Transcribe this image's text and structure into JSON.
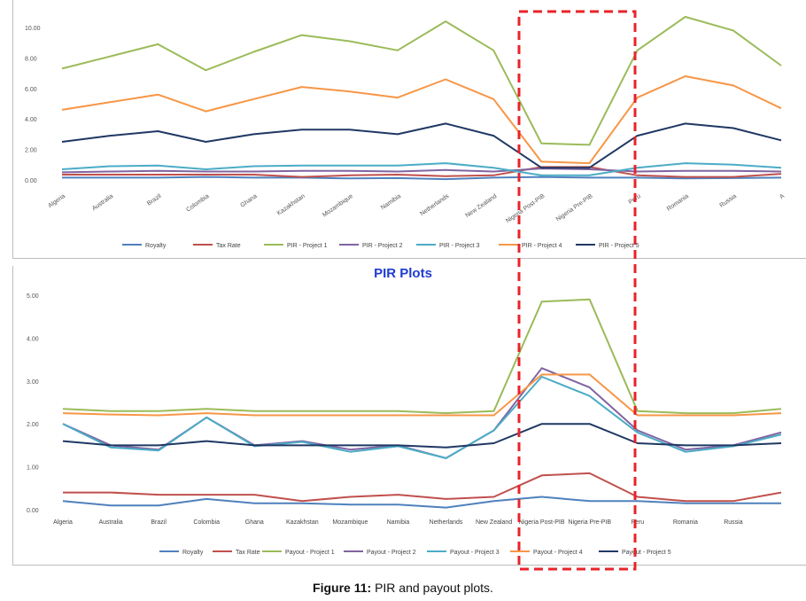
{
  "figure": {
    "caption_prefix": "Figure 11:",
    "caption_text": " PIR and payout plots.",
    "highlight_color": "#e8232a"
  },
  "chart_data": [
    {
      "type": "line",
      "title": "",
      "xlabel": "",
      "ylabel": "",
      "ylim": [
        0,
        10
      ],
      "yticks": [
        "0.00",
        "2.00",
        "4.00",
        "6.00",
        "8.00",
        "10.00"
      ],
      "grid": false,
      "legend": "bottom",
      "categories": [
        "Algeria",
        "Australia",
        "Brazil",
        "Colombia",
        "Ghana",
        "Kazakhstan",
        "Mozambique",
        "Namibia",
        "Netherlands",
        "New Zealand",
        "Nigeria Post-PIB",
        "Nigeria Pre-PIB",
        "Peru",
        "Romania",
        "Russia",
        "A"
      ],
      "series": [
        {
          "name": "Royalty",
          "color": "#4f81bd",
          "values": [
            0.15,
            0.15,
            0.15,
            0.2,
            0.15,
            0.15,
            0.1,
            0.12,
            0.05,
            0.15,
            0.2,
            0.15,
            0.15,
            0.1,
            0.12,
            0.15
          ]
        },
        {
          "name": "Tax Rate",
          "color": "#c0504d",
          "values": [
            0.35,
            0.35,
            0.35,
            0.35,
            0.35,
            0.2,
            0.3,
            0.35,
            0.25,
            0.3,
            0.85,
            0.85,
            0.3,
            0.2,
            0.2,
            0.4
          ]
        },
        {
          "name": "PIR - Project 1",
          "color": "#9bbb59",
          "values": [
            7.3,
            8.1,
            8.9,
            7.2,
            8.4,
            9.5,
            9.1,
            8.5,
            10.4,
            8.5,
            2.4,
            2.3,
            8.5,
            10.7,
            9.8,
            7.5
          ]
        },
        {
          "name": "PIR - Project 2",
          "color": "#8064a2",
          "values": [
            0.5,
            0.55,
            0.6,
            0.55,
            0.55,
            0.6,
            0.6,
            0.55,
            0.65,
            0.55,
            0.75,
            0.7,
            0.55,
            0.6,
            0.6,
            0.55
          ]
        },
        {
          "name": "PIR - Project 3",
          "color": "#4bacc6",
          "values": [
            0.7,
            0.9,
            0.95,
            0.7,
            0.9,
            0.95,
            0.95,
            0.95,
            1.1,
            0.8,
            0.3,
            0.3,
            0.8,
            1.1,
            1.0,
            0.8
          ]
        },
        {
          "name": "PIR - Project 4",
          "color": "#f79646",
          "values": [
            4.6,
            5.1,
            5.6,
            4.5,
            5.3,
            6.1,
            5.8,
            5.4,
            6.6,
            5.3,
            1.2,
            1.1,
            5.4,
            6.8,
            6.2,
            4.7
          ]
        },
        {
          "name": "PIR - Project 5",
          "color": "#1f3864",
          "values": [
            2.5,
            2.9,
            3.2,
            2.5,
            3.0,
            3.3,
            3.3,
            3.0,
            3.7,
            2.9,
            0.8,
            0.8,
            2.9,
            3.7,
            3.4,
            2.6
          ]
        }
      ]
    },
    {
      "type": "line",
      "title": "PIR Plots",
      "xlabel": "",
      "ylabel": "",
      "ylim": [
        0,
        5
      ],
      "yticks": [
        "0.00",
        "1.00",
        "2.00",
        "3.00",
        "4.00",
        "5.00"
      ],
      "grid": false,
      "legend": "bottom",
      "categories": [
        "Algeria",
        "Australia",
        "Brazil",
        "Colombia",
        "Ghana",
        "Kazakhstan",
        "Mozambique",
        "Namibia",
        "Netherlands",
        "New Zealand",
        "Nigeria Post-PIB",
        "Nigeria Pre-PIB",
        "Peru",
        "Romania",
        "Russia",
        ""
      ],
      "series": [
        {
          "name": "Royalty",
          "color": "#4f81bd",
          "values": [
            0.2,
            0.1,
            0.1,
            0.25,
            0.15,
            0.15,
            0.12,
            0.12,
            0.05,
            0.2,
            0.3,
            0.2,
            0.2,
            0.15,
            0.15,
            0.15
          ]
        },
        {
          "name": "Tax Rate",
          "color": "#c0504d",
          "values": [
            0.4,
            0.4,
            0.35,
            0.35,
            0.35,
            0.2,
            0.3,
            0.35,
            0.25,
            0.3,
            0.8,
            0.85,
            0.3,
            0.2,
            0.2,
            0.4
          ]
        },
        {
          "name": "Payout - Project 1",
          "color": "#9bbb59",
          "values": [
            2.35,
            2.3,
            2.3,
            2.35,
            2.3,
            2.3,
            2.3,
            2.3,
            2.25,
            2.3,
            4.85,
            4.9,
            2.3,
            2.25,
            2.25,
            2.35
          ]
        },
        {
          "name": "Payout - Project 2",
          "color": "#8064a2",
          "values": [
            2.0,
            1.5,
            1.4,
            2.15,
            1.5,
            1.6,
            1.4,
            1.5,
            1.2,
            1.85,
            3.3,
            2.85,
            1.85,
            1.4,
            1.5,
            1.8
          ]
        },
        {
          "name": "Payout - Project 3",
          "color": "#4bacc6",
          "values": [
            2.0,
            1.45,
            1.38,
            2.15,
            1.48,
            1.58,
            1.35,
            1.48,
            1.2,
            1.85,
            3.1,
            2.65,
            1.8,
            1.35,
            1.48,
            1.75
          ]
        },
        {
          "name": "Payout - Project 4",
          "color": "#f79646",
          "values": [
            2.25,
            2.22,
            2.2,
            2.25,
            2.2,
            2.2,
            2.2,
            2.2,
            2.2,
            2.2,
            3.15,
            3.15,
            2.2,
            2.2,
            2.2,
            2.25
          ]
        },
        {
          "name": "Payout - Project 5",
          "color": "#1f3864",
          "values": [
            1.6,
            1.5,
            1.5,
            1.6,
            1.5,
            1.5,
            1.5,
            1.5,
            1.45,
            1.55,
            2.0,
            2.0,
            1.55,
            1.5,
            1.5,
            1.55
          ]
        }
      ]
    }
  ]
}
